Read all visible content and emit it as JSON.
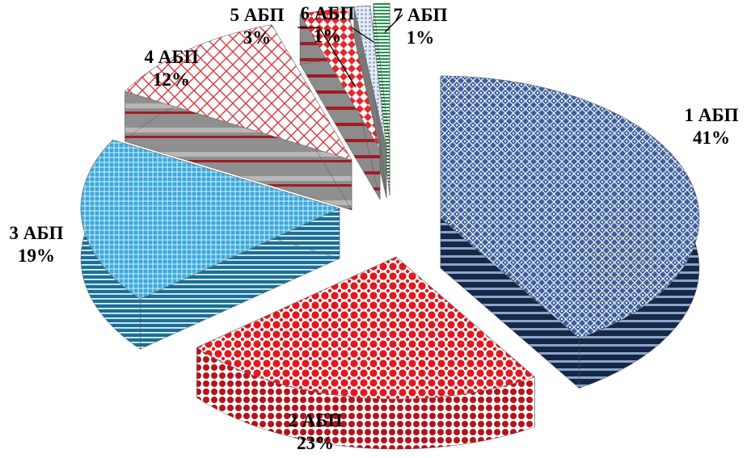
{
  "chart_data": {
    "type": "pie",
    "title": "",
    "legend": "none",
    "style": "3d-exploded",
    "slices": [
      {
        "category": "1 АБП",
        "value": 41,
        "label": "41%",
        "color": "#3c5f9a",
        "pattern": "diamond-mesh"
      },
      {
        "category": "2 АБП",
        "value": 23,
        "label": "23%",
        "color": "#e3171d",
        "pattern": "dots"
      },
      {
        "category": "3 АБП",
        "value": 19,
        "label": "19%",
        "color": "#39a9dc",
        "pattern": "fine-grid"
      },
      {
        "category": "4 АБП",
        "value": 12,
        "label": "12%",
        "color": "#d9383e",
        "pattern": "diagonal-grid"
      },
      {
        "category": "5 АБП",
        "value": 3,
        "label": "3%",
        "color": "#e8262b",
        "pattern": "diamonds"
      },
      {
        "category": "6 АБП",
        "value": 1,
        "label": "1%",
        "color": "#7f9bc3",
        "pattern": "dots"
      },
      {
        "category": "7 АБП",
        "value": 1,
        "label": "1%",
        "color": "#1f9a4c",
        "pattern": "horizontal-stripes"
      }
    ]
  }
}
